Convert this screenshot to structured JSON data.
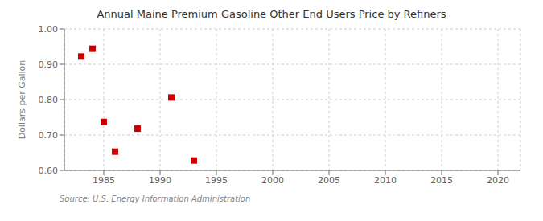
{
  "chart_data": {
    "type": "scatter",
    "title": "Annual Maine Premium Gasoline Other End Users Price by Refiners",
    "ylabel": "Dollars per Gallon",
    "source": "Source: U.S. Energy Information Administration",
    "x": [
      1983,
      1984,
      1985,
      1986,
      1988,
      1991,
      1993
    ],
    "values": [
      0.922,
      0.944,
      0.737,
      0.653,
      0.718,
      0.806,
      0.628
    ],
    "xlim": [
      1981.5,
      2022
    ],
    "ylim": [
      0.6,
      1.0
    ],
    "xticks": [
      1985,
      1990,
      1995,
      2000,
      2005,
      2010,
      2015,
      2020
    ],
    "yticks": [
      {
        "value": 0.6,
        "label": "0.60"
      },
      {
        "value": 0.7,
        "label": "0.70"
      },
      {
        "value": 0.8,
        "label": "0.80"
      },
      {
        "value": 0.9,
        "label": "0.90"
      },
      {
        "value": 1.0,
        "label": "1.00"
      }
    ],
    "color": "#cc0000",
    "marker": "square",
    "grid": true
  }
}
